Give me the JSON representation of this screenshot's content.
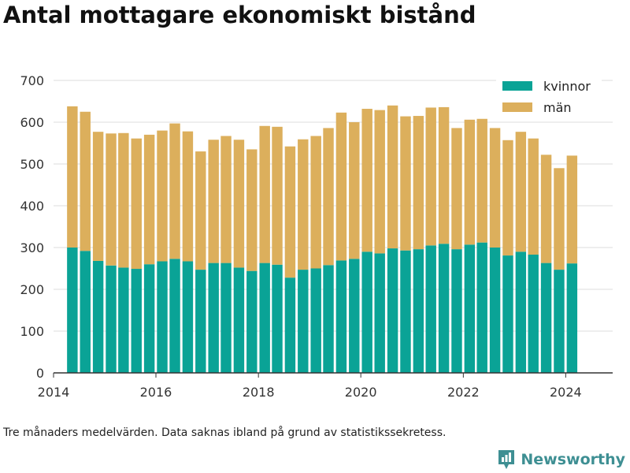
{
  "title": "Antal mottagare ekonomiskt bistånd",
  "footnote": "Tre månaders medelvärden. Data saknas ibland på grund av statistikssekretess.",
  "brand": "Newsworthy",
  "colors": {
    "kvinnor": "#0aa396",
    "man": "#dcaf5c",
    "grid": "#dddddd",
    "axis": "#333333",
    "brand": "#3e8f93"
  },
  "chart_data": {
    "type": "bar",
    "stacked": true,
    "title": "Antal mottagare ekonomiskt bistånd",
    "xlabel": "",
    "ylabel": "",
    "x_date_range": [
      "2014-01-01",
      "2024-12-01"
    ],
    "xticks": [
      "2014",
      "2016",
      "2018",
      "2020",
      "2022",
      "2024"
    ],
    "ylim": [
      0,
      700
    ],
    "yticks": [
      0,
      100,
      200,
      300,
      400,
      500,
      600,
      700
    ],
    "grid": true,
    "legend_position": "top-right",
    "x": [
      "2014-05-15",
      "2014-08-15",
      "2014-11-15",
      "2015-02-15",
      "2015-05-15",
      "2015-08-15",
      "2015-11-15",
      "2016-02-15",
      "2016-05-15",
      "2016-08-15",
      "2016-11-15",
      "2017-02-15",
      "2017-05-15",
      "2017-08-15",
      "2017-11-15",
      "2018-02-15",
      "2018-05-15",
      "2018-08-15",
      "2018-11-15",
      "2019-02-15",
      "2019-05-15",
      "2019-08-15",
      "2019-11-15",
      "2020-02-15",
      "2020-05-15",
      "2020-08-15",
      "2020-11-15",
      "2021-02-15",
      "2021-05-15",
      "2021-08-15",
      "2021-11-15",
      "2022-02-15",
      "2022-05-15",
      "2022-08-15",
      "2022-11-15",
      "2023-02-15",
      "2023-05-15",
      "2023-08-15",
      "2023-11-15",
      "2024-02-15"
    ],
    "series": [
      {
        "name": "kvinnor",
        "values": [
          300,
          292,
          268,
          257,
          252,
          249,
          260,
          267,
          273,
          267,
          247,
          263,
          263,
          252,
          244,
          263,
          259,
          228,
          247,
          250,
          258,
          269,
          273,
          290,
          286,
          298,
          293,
          296,
          305,
          309,
          296,
          307,
          312,
          300,
          281,
          290,
          283,
          263,
          247,
          262
        ]
      },
      {
        "name": "män",
        "values": [
          338,
          333,
          309,
          316,
          322,
          312,
          310,
          313,
          324,
          311,
          283,
          295,
          304,
          306,
          291,
          328,
          330,
          314,
          312,
          317,
          328,
          354,
          327,
          342,
          343,
          342,
          321,
          319,
          330,
          327,
          290,
          299,
          296,
          286,
          276,
          287,
          278,
          259,
          243,
          258
        ]
      }
    ]
  }
}
